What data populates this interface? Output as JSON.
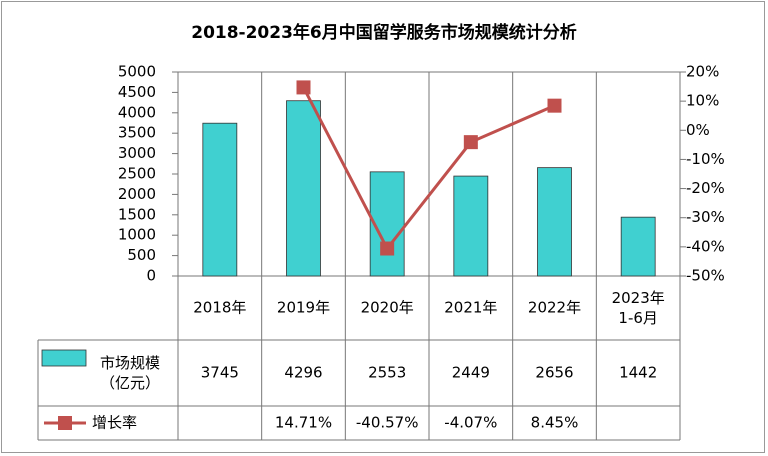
{
  "chart_data": {
    "type": "bar-line-table",
    "title": "2018-2023年6月中国留学服务市场规模统计分析",
    "categories": [
      "2018年",
      "2019年",
      "2020年",
      "2021年",
      "2022年",
      "2023年\n1-6月"
    ],
    "series": [
      {
        "name": "市场规模\n（亿元）",
        "type": "bar",
        "color": "#40D0D0",
        "values": [
          3745,
          4296,
          2553,
          2449,
          2656,
          1442
        ]
      },
      {
        "name": "增长率",
        "type": "line",
        "axis": "y2",
        "color": "#C0504D",
        "values": [
          null,
          14.71,
          -40.57,
          -4.07,
          8.45,
          null
        ],
        "value_labels": [
          null,
          "14.71%",
          "-40.57%",
          "-4.07%",
          "8.45%",
          null
        ]
      }
    ],
    "ylim": [
      0,
      5000
    ],
    "yticks": [
      0,
      500,
      1000,
      1500,
      2000,
      2500,
      3000,
      3500,
      4000,
      4500,
      5000
    ],
    "y2lim": [
      -50,
      20
    ],
    "y2ticks": [
      {
        "value": -50,
        "label": "-50%"
      },
      {
        "value": -40,
        "label": "-40%"
      },
      {
        "value": -30,
        "label": "-30%"
      },
      {
        "value": -20,
        "label": "-20%"
      },
      {
        "value": -10,
        "label": "-10%"
      },
      {
        "value": 0,
        "label": "0%"
      },
      {
        "value": 10,
        "label": "10%"
      },
      {
        "value": 20,
        "label": "20%"
      }
    ]
  }
}
